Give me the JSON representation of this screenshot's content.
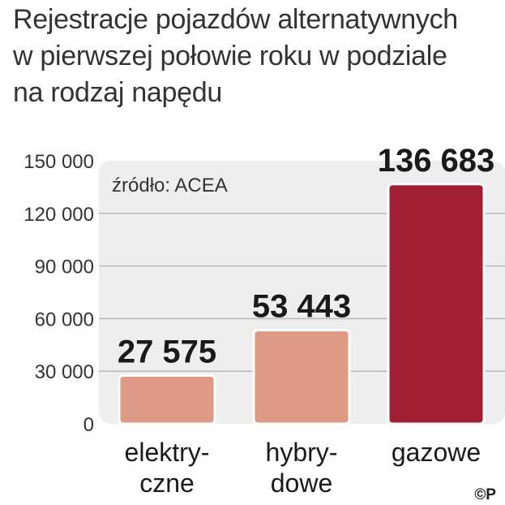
{
  "title_lines": [
    "Rejestracje pojazdów alternatywnych",
    "w pierwszej połowie roku w podziale",
    "na rodzaj napędu"
  ],
  "source": "źródło: ACEA",
  "copyright": "©P",
  "colors": {
    "plot_bg": "#eeeeee",
    "grid": "#b8b8b8",
    "light_bar": "#de9a85",
    "dark_bar": "#a01f33",
    "bar_outline": "#ffffff"
  },
  "chart_data": {
    "type": "bar",
    "categories": [
      "elektry-\nczne",
      "hybry-\ndowe",
      "gazowe"
    ],
    "values": [
      27575,
      53443,
      136683
    ],
    "value_labels": [
      "27 575",
      "53 443",
      "136 683"
    ],
    "bar_colors": [
      "#de9a85",
      "#de9a85",
      "#a01f33"
    ],
    "yticks": [
      0,
      30000,
      60000,
      90000,
      120000,
      150000
    ],
    "ytick_labels": [
      "0",
      "30 000",
      "60 000",
      "90 000",
      "120 000",
      "150 000"
    ],
    "ylim": [
      0,
      150000
    ],
    "grid": true,
    "title": "Rejestracje pojazdów alternatywnych w pierwszej połowie roku w podziale na rodzaj napędu",
    "xlabel": "",
    "ylabel": ""
  }
}
